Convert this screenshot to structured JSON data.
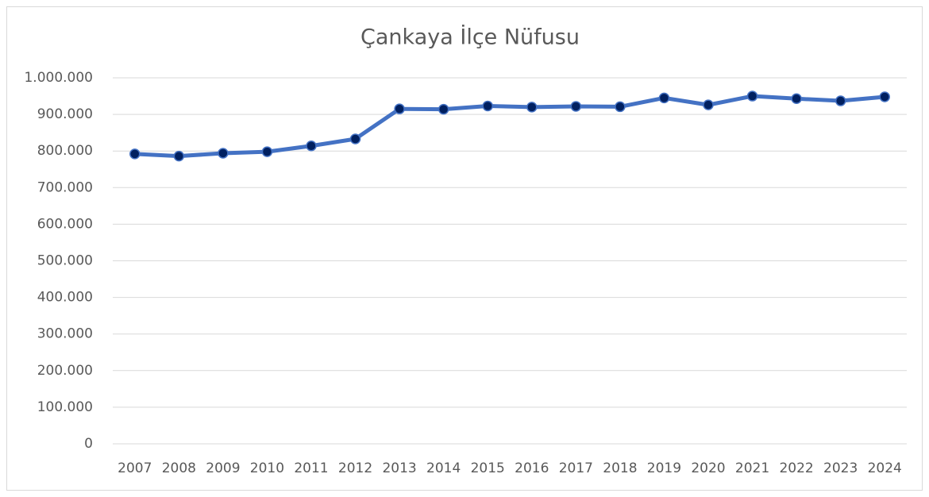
{
  "chart_data": {
    "type": "line",
    "title": "Çankaya İlçe Nüfusu",
    "categories": [
      "2007",
      "2008",
      "2009",
      "2010",
      "2011",
      "2012",
      "2013",
      "2014",
      "2015",
      "2016",
      "2017",
      "2018",
      "2019",
      "2020",
      "2021",
      "2022",
      "2023",
      "2024"
    ],
    "values": [
      792000,
      786000,
      794000,
      798000,
      814000,
      833000,
      915000,
      914000,
      923000,
      920000,
      922000,
      921000,
      945000,
      926000,
      950000,
      943000,
      937000,
      948000
    ],
    "color": "#4472c4",
    "marker_color": "#002060",
    "ylim": [
      0,
      1000000
    ],
    "yticks": [
      0,
      {
        "value": 100000,
        "label": "100.000"
      },
      {
        "value": 200000,
        "label": "200.000"
      },
      {
        "value": 300000,
        "label": "300.000"
      },
      {
        "value": 400000,
        "label": "400.000"
      },
      {
        "value": 500000,
        "label": "500.000"
      },
      {
        "value": 600000,
        "label": "600.000"
      },
      {
        "value": 700000,
        "label": "700.000"
      },
      {
        "value": 800000,
        "label": "800.000"
      },
      {
        "value": 900000,
        "label": "900.000"
      },
      {
        "value": 1000000,
        "label": "1.000.000"
      }
    ],
    "grid": true
  }
}
